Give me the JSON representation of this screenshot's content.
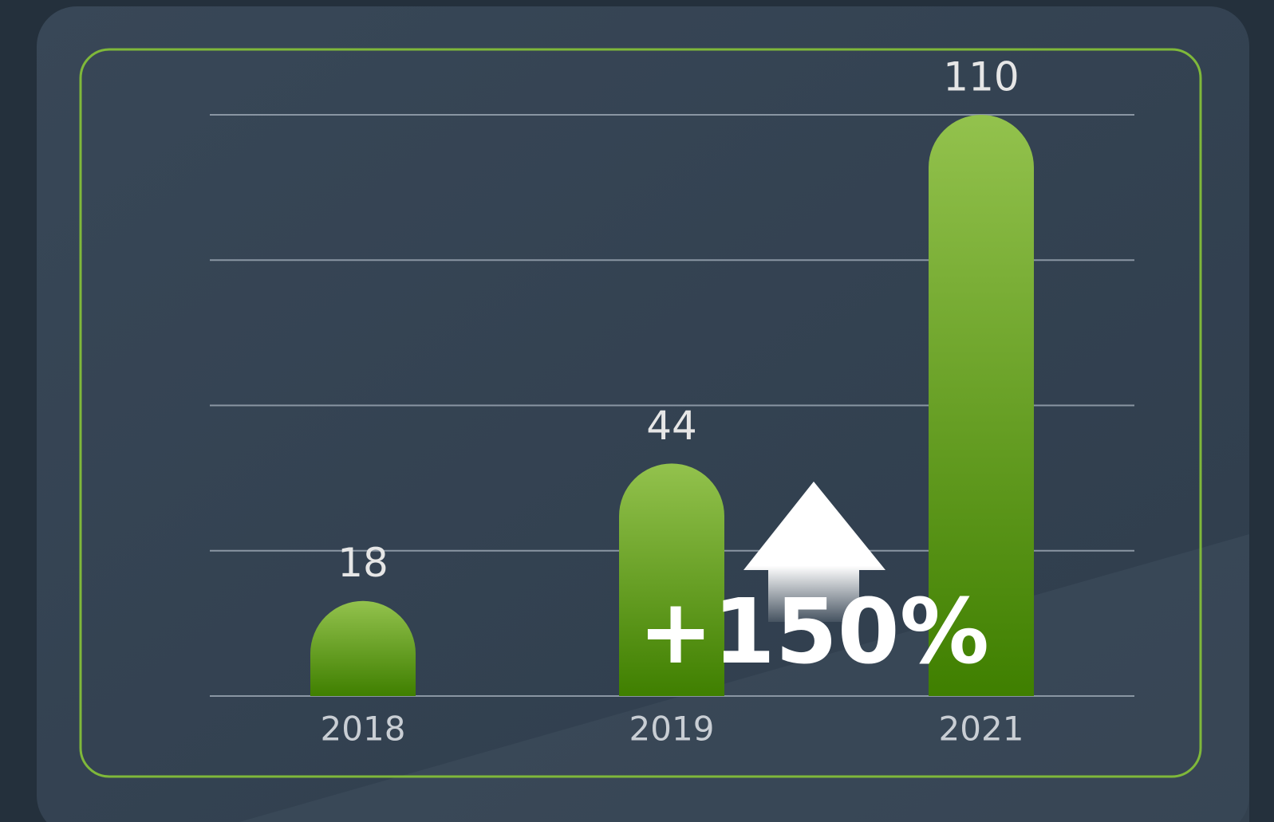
{
  "chart_data": {
    "type": "bar",
    "categories": [
      "2018",
      "2019",
      "2021"
    ],
    "values": [
      18,
      44,
      110
    ],
    "color": "#6fa82c",
    "ylim": [
      0,
      110
    ],
    "yticks": [
      0,
      27.5,
      55,
      82.5,
      110
    ],
    "grid": true,
    "annotation": "+150%"
  }
}
